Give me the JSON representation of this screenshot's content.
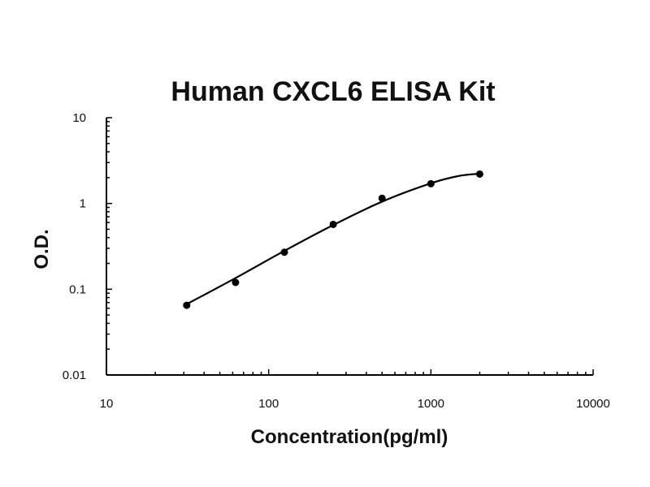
{
  "chart_data": {
    "type": "scatter",
    "title": "Human CXCL6 ELISA Kit",
    "xlabel": "Concentration(pg/ml)",
    "ylabel": "O.D.",
    "xscale": "log",
    "yscale": "log",
    "xlim": [
      10,
      10000
    ],
    "ylim": [
      0.01,
      10
    ],
    "xticks": [
      {
        "value": 10,
        "label": "10"
      },
      {
        "value": 100,
        "label": "100"
      },
      {
        "value": 1000,
        "label": "1000"
      },
      {
        "value": 10000,
        "label": "10000"
      }
    ],
    "yticks": [
      {
        "value": 0.01,
        "label": "0.01"
      },
      {
        "value": 0.1,
        "label": "0.1"
      },
      {
        "value": 1,
        "label": "1"
      },
      {
        "value": 10,
        "label": "10"
      }
    ],
    "grid": false,
    "legend": "none",
    "series": [
      {
        "points": [
          {
            "x": 31.25,
            "y": 0.065
          },
          {
            "x": 62.5,
            "y": 0.12
          },
          {
            "x": 125,
            "y": 0.27
          },
          {
            "x": 250,
            "y": 0.57
          },
          {
            "x": 500,
            "y": 1.15
          },
          {
            "x": 1000,
            "y": 1.7
          },
          {
            "x": 2000,
            "y": 2.2
          }
        ],
        "fit_curve": [
          {
            "x": 31.25,
            "y": 0.067
          },
          {
            "x": 62.5,
            "y": 0.135
          },
          {
            "x": 125,
            "y": 0.28
          },
          {
            "x": 250,
            "y": 0.56
          },
          {
            "x": 500,
            "y": 1.05
          },
          {
            "x": 1000,
            "y": 1.72
          },
          {
            "x": 1500,
            "y": 2.1
          },
          {
            "x": 2000,
            "y": 2.22
          }
        ]
      }
    ],
    "colors": {
      "marker": "#000000",
      "line": "#000000",
      "axis": "#000000",
      "text": "#111111"
    }
  }
}
